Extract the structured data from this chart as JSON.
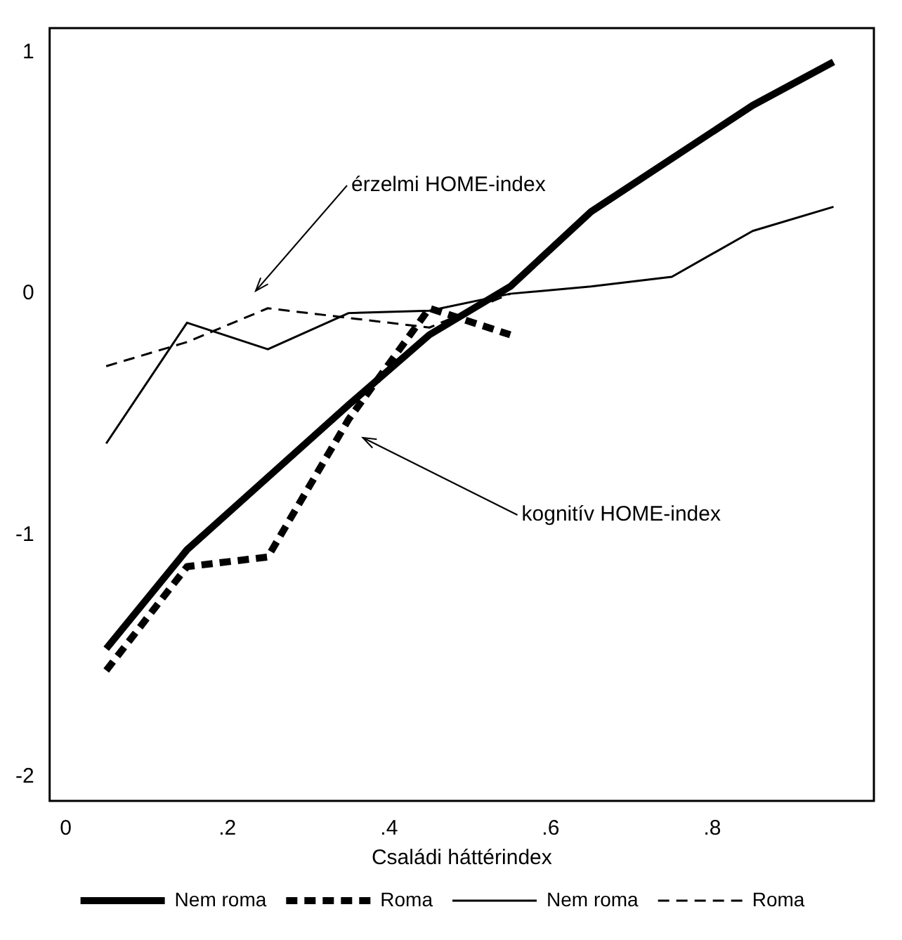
{
  "chart_data": {
    "type": "line",
    "xlabel": "Családi háttérindex",
    "xlim": [
      -0.02,
      1
    ],
    "xticks": [
      0,
      {
        "value": 0.2,
        "label": ".2"
      },
      {
        "value": 0.4,
        "label": ".4"
      },
      {
        "value": 0.6,
        "label": ".6"
      },
      {
        "value": 0.8,
        "label": ".8"
      }
    ],
    "ylim": [
      -2.1,
      1.1
    ],
    "yticks": [
      -2,
      -1,
      0,
      1
    ],
    "grid": false,
    "legend": "bottom",
    "marker": "none",
    "series": [
      {
        "name": "Nem roma",
        "color": "#000000",
        "line_style": "solid",
        "x": [
          0.05,
          0.15,
          0.25,
          0.35,
          0.45,
          0.55,
          0.65,
          0.75,
          0.85,
          0.95
        ],
        "values": [
          -1.47,
          -1.06,
          -0.76,
          -0.46,
          -0.17,
          0.03,
          0.34,
          0.56,
          0.78,
          0.96
        ]
      },
      {
        "name": "Roma",
        "color": "#000000",
        "line_style": "dashed",
        "x": [
          0.05,
          0.15,
          0.25,
          0.35,
          0.45,
          0.55
        ],
        "values": [
          -1.56,
          -1.13,
          -1.09,
          -0.52,
          -0.06,
          -0.17
        ]
      },
      {
        "name": "Nem roma",
        "color": "#000000",
        "line_style": "solid",
        "x": [
          0.05,
          0.15,
          0.25,
          0.35,
          0.45,
          0.55,
          0.65,
          0.75,
          0.85,
          0.95
        ],
        "values": [
          -0.62,
          -0.12,
          -0.23,
          -0.08,
          -0.07,
          0.0,
          0.03,
          0.07,
          0.26,
          0.36
        ]
      },
      {
        "name": "Roma",
        "color": "#000000",
        "line_style": "dashed",
        "x": [
          0.05,
          0.15,
          0.25,
          0.35,
          0.45,
          0.55
        ],
        "values": [
          -0.3,
          -0.2,
          -0.06,
          -0.1,
          -0.14,
          0.0
        ]
      }
    ],
    "annotations": [
      "érzelmi HOME-index",
      "kognitív HOME-index"
    ]
  }
}
